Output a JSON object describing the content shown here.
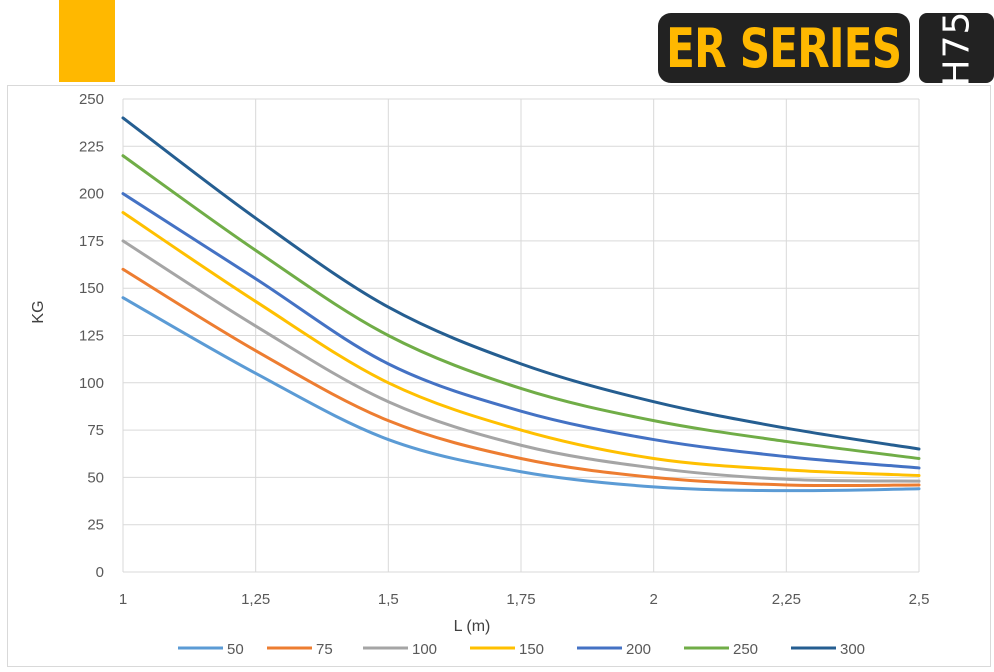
{
  "header": {
    "accent_color": "#FFB800",
    "brand": "ER SERIES",
    "model": "H75"
  },
  "chart_data": {
    "type": "line",
    "xlabel": "L (m)",
    "ylabel": "KG",
    "xlim": [
      1,
      2.5
    ],
    "ylim": [
      0,
      250
    ],
    "x_ticks": [
      "1",
      "1,25",
      "1,5",
      "1,75",
      "2",
      "2,25",
      "2,5"
    ],
    "y_ticks": [
      "0",
      "25",
      "50",
      "75",
      "100",
      "125",
      "150",
      "175",
      "200",
      "225",
      "250"
    ],
    "grid": true,
    "legend_position": "bottom",
    "x": [
      1,
      1.25,
      1.5,
      1.75,
      2,
      2.25,
      2.5
    ],
    "series": [
      {
        "name": "50",
        "color": "#5B9BD5",
        "values": [
          145,
          105,
          70,
          53,
          45,
          43,
          44
        ]
      },
      {
        "name": "75",
        "color": "#ED7D31",
        "values": [
          160,
          117,
          80,
          60,
          50,
          46,
          46
        ]
      },
      {
        "name": "100",
        "color": "#A5A5A5",
        "values": [
          175,
          130,
          90,
          67,
          55,
          49,
          48
        ]
      },
      {
        "name": "150",
        "color": "#FFC000",
        "values": [
          190,
          143,
          100,
          75,
          60,
          54,
          51
        ]
      },
      {
        "name": "200",
        "color": "#4472C4",
        "values": [
          200,
          155,
          110,
          85,
          70,
          61,
          55
        ]
      },
      {
        "name": "250",
        "color": "#70AD47",
        "values": [
          220,
          170,
          125,
          97,
          80,
          69,
          60
        ]
      },
      {
        "name": "300",
        "color": "#255E91",
        "values": [
          240,
          187,
          140,
          110,
          90,
          76,
          65
        ]
      }
    ]
  }
}
